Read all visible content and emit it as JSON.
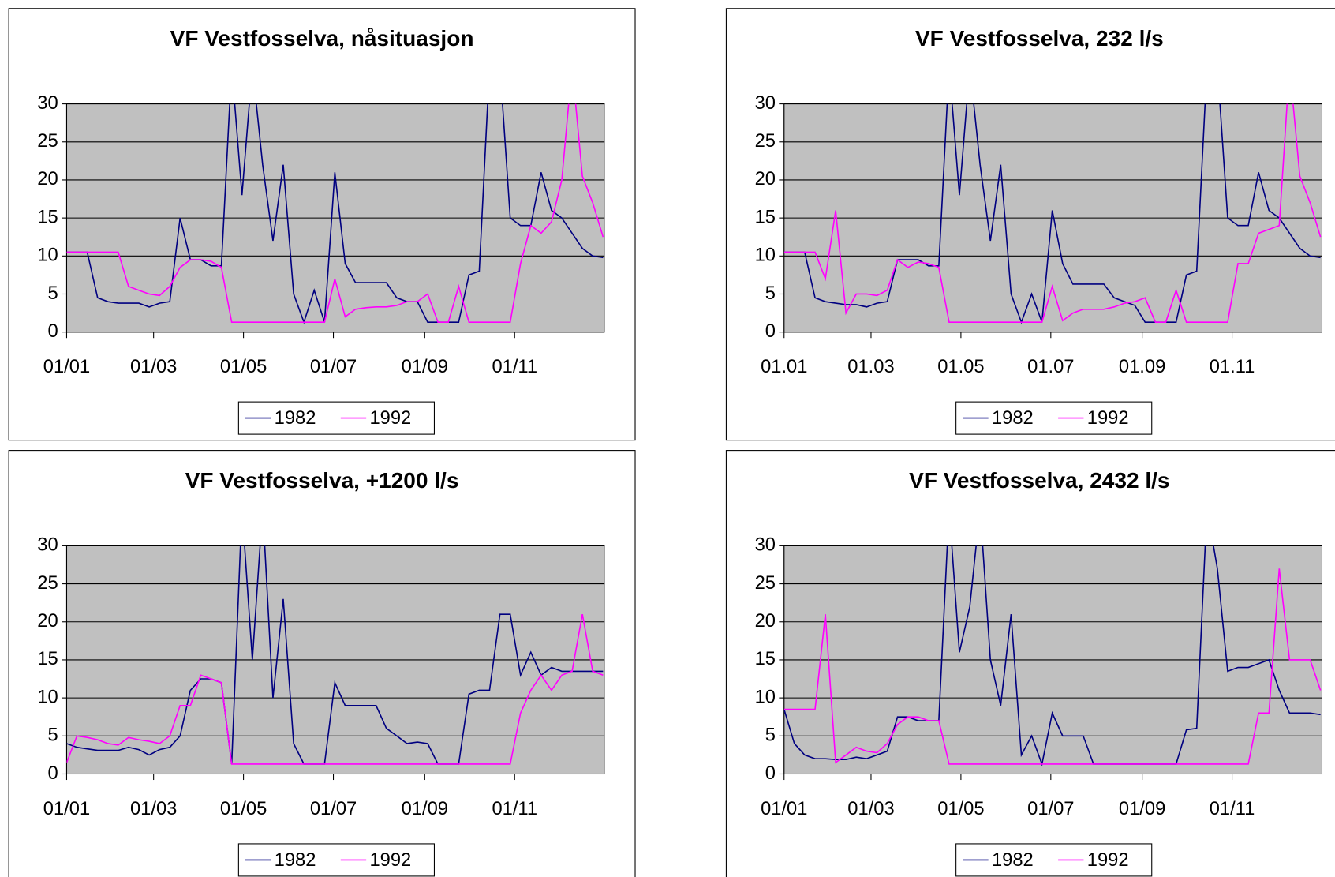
{
  "chart_data": [
    {
      "type": "line",
      "title": "VF Vestfosselva, nåsituasjon",
      "x": [
        1,
        8,
        15,
        22,
        29,
        36,
        43,
        50,
        57,
        64,
        71,
        78,
        85,
        92,
        99,
        106,
        113,
        120,
        127,
        134,
        141,
        148,
        155,
        162,
        169,
        176,
        183,
        190,
        197,
        204,
        211,
        218,
        225,
        232,
        239,
        246,
        253,
        260,
        267,
        274,
        281,
        288,
        295,
        302,
        309,
        316,
        323,
        330,
        337,
        344,
        351,
        358,
        365
      ],
      "xlim": [
        1,
        366
      ],
      "xticks": [
        {
          "value": 1,
          "label": "01/01"
        },
        {
          "value": 60,
          "label": "01/03"
        },
        {
          "value": 121,
          "label": "01/05"
        },
        {
          "value": 182,
          "label": "01/07"
        },
        {
          "value": 244,
          "label": "01/09"
        },
        {
          "value": 305,
          "label": "01/11"
        }
      ],
      "ylim": [
        0,
        30
      ],
      "yticks": [
        0,
        5,
        10,
        15,
        20,
        25,
        30
      ],
      "grid": true,
      "series": [
        {
          "name": "1982",
          "color": "#000080",
          "values": [
            10.5,
            10.5,
            10.5,
            4.5,
            4,
            3.8,
            3.8,
            3.8,
            3.3,
            3.8,
            4,
            15,
            9.5,
            9.5,
            8.7,
            8.7,
            35,
            18,
            35,
            22,
            12,
            22,
            5,
            1.3,
            5.5,
            1.3,
            21,
            9,
            6.5,
            6.5,
            6.5,
            6.5,
            4.5,
            4,
            4,
            1.3,
            1.3,
            1.3,
            1.3,
            7.5,
            8,
            35,
            35,
            15,
            14,
            14,
            21,
            16,
            15,
            13,
            11,
            10,
            9.8
          ]
        },
        {
          "name": "1992",
          "color": "#ff00ff",
          "values": [
            10.5,
            10.5,
            10.5,
            10.5,
            10.5,
            10.5,
            6,
            5.5,
            5,
            4.8,
            6,
            8.5,
            9.5,
            9.5,
            9.3,
            8.5,
            1.3,
            1.3,
            1.3,
            1.3,
            1.3,
            1.3,
            1.3,
            1.3,
            1.3,
            1.3,
            7,
            2,
            3,
            3.2,
            3.3,
            3.3,
            3.5,
            4,
            4,
            5,
            1.3,
            1.3,
            6,
            1.3,
            1.3,
            1.3,
            1.3,
            1.3,
            9,
            14,
            13,
            14.5,
            20,
            35,
            20.5,
            17,
            12.5
          ]
        }
      ]
    },
    {
      "type": "line",
      "title": "VF Vestfosselva, 232 l/s",
      "x": [
        1,
        8,
        15,
        22,
        29,
        36,
        43,
        50,
        57,
        64,
        71,
        78,
        85,
        92,
        99,
        106,
        113,
        120,
        127,
        134,
        141,
        148,
        155,
        162,
        169,
        176,
        183,
        190,
        197,
        204,
        211,
        218,
        225,
        232,
        239,
        246,
        253,
        260,
        267,
        274,
        281,
        288,
        295,
        302,
        309,
        316,
        323,
        330,
        337,
        344,
        351,
        358,
        365
      ],
      "xlim": [
        1,
        366
      ],
      "xticks": [
        {
          "value": 1,
          "label": "01.01"
        },
        {
          "value": 60,
          "label": "01.03"
        },
        {
          "value": 121,
          "label": "01.05"
        },
        {
          "value": 182,
          "label": "01.07"
        },
        {
          "value": 244,
          "label": "01.09"
        },
        {
          "value": 305,
          "label": "01.11"
        }
      ],
      "ylim": [
        0,
        30
      ],
      "yticks": [
        0,
        5,
        10,
        15,
        20,
        25,
        30
      ],
      "grid": true,
      "series": [
        {
          "name": "1982",
          "color": "#000080",
          "values": [
            10.5,
            10.5,
            10.5,
            4.5,
            4,
            3.8,
            3.6,
            3.6,
            3.3,
            3.8,
            4,
            9.5,
            9.5,
            9.5,
            8.7,
            8.7,
            35,
            18,
            35,
            22,
            12,
            22,
            5,
            1.3,
            5,
            1.3,
            16,
            9,
            6.3,
            6.3,
            6.3,
            6.3,
            4.5,
            4,
            3.5,
            1.3,
            1.3,
            1.3,
            1.3,
            7.5,
            8,
            35,
            35,
            15,
            14,
            14,
            21,
            16,
            15,
            13,
            11,
            10,
            9.8
          ]
        },
        {
          "name": "1992",
          "color": "#ff00ff",
          "values": [
            10.5,
            10.5,
            10.5,
            10.5,
            7,
            16,
            2.5,
            5,
            5,
            4.8,
            5.5,
            9.5,
            8.5,
            9.2,
            9,
            8.5,
            1.3,
            1.3,
            1.3,
            1.3,
            1.3,
            1.3,
            1.3,
            1.3,
            1.3,
            1.3,
            6,
            1.5,
            2.5,
            3,
            3,
            3,
            3.3,
            3.8,
            4,
            4.5,
            1.3,
            1.3,
            5.5,
            1.3,
            1.3,
            1.3,
            1.3,
            1.3,
            9,
            9,
            13,
            13.5,
            14,
            35,
            20.5,
            17,
            12.5
          ]
        }
      ]
    },
    {
      "type": "line",
      "title": "VF Vestfosselva, +1200 l/s",
      "x": [
        1,
        8,
        15,
        22,
        29,
        36,
        43,
        50,
        57,
        64,
        71,
        78,
        85,
        92,
        99,
        106,
        113,
        120,
        127,
        134,
        141,
        148,
        155,
        162,
        169,
        176,
        183,
        190,
        197,
        204,
        211,
        218,
        225,
        232,
        239,
        246,
        253,
        260,
        267,
        274,
        281,
        288,
        295,
        302,
        309,
        316,
        323,
        330,
        337,
        344,
        351,
        358,
        365
      ],
      "xlim": [
        1,
        366
      ],
      "xticks": [
        {
          "value": 1,
          "label": "01/01"
        },
        {
          "value": 60,
          "label": "01/03"
        },
        {
          "value": 121,
          "label": "01/05"
        },
        {
          "value": 182,
          "label": "01/07"
        },
        {
          "value": 244,
          "label": "01/09"
        },
        {
          "value": 305,
          "label": "01/11"
        }
      ],
      "ylim": [
        0,
        30
      ],
      "yticks": [
        0,
        5,
        10,
        15,
        20,
        25,
        30
      ],
      "grid": true,
      "series": [
        {
          "name": "1982",
          "color": "#000080",
          "values": [
            4,
            3.5,
            3.3,
            3.1,
            3.1,
            3.1,
            3.5,
            3.2,
            2.5,
            3.2,
            3.5,
            5,
            11,
            12.5,
            12.5,
            12,
            1.3,
            35,
            15,
            35,
            10,
            23,
            4,
            1.3,
            1.3,
            1.3,
            12,
            9,
            9,
            9,
            9,
            6,
            5,
            4,
            4.2,
            4,
            1.3,
            1.3,
            1.3,
            10.5,
            11,
            11,
            21,
            21,
            13,
            16,
            13,
            14,
            13.5,
            13.5,
            13.5,
            13.5,
            13.5
          ]
        },
        {
          "name": "1992",
          "color": "#ff00ff",
          "values": [
            1.5,
            5,
            4.8,
            4.5,
            4,
            3.8,
            4.8,
            4.5,
            4.3,
            4,
            5,
            9,
            9,
            13,
            12.5,
            12,
            1.3,
            1.3,
            1.3,
            1.3,
            1.3,
            1.3,
            1.3,
            1.3,
            1.3,
            1.3,
            1.3,
            1.3,
            1.3,
            1.3,
            1.3,
            1.3,
            1.3,
            1.3,
            1.3,
            1.3,
            1.3,
            1.3,
            1.3,
            1.3,
            1.3,
            1.3,
            1.3,
            1.3,
            8,
            11,
            13,
            11,
            13,
            13.5,
            21,
            13.5,
            13
          ]
        }
      ]
    },
    {
      "type": "line",
      "title": "VF Vestfosselva, 2432 l/s",
      "x": [
        1,
        8,
        15,
        22,
        29,
        36,
        43,
        50,
        57,
        64,
        71,
        78,
        85,
        92,
        99,
        106,
        113,
        120,
        127,
        134,
        141,
        148,
        155,
        162,
        169,
        176,
        183,
        190,
        197,
        204,
        211,
        218,
        225,
        232,
        239,
        246,
        253,
        260,
        267,
        274,
        281,
        288,
        295,
        302,
        309,
        316,
        323,
        330,
        337,
        344,
        351,
        358,
        365
      ],
      "xlim": [
        1,
        366
      ],
      "xticks": [
        {
          "value": 1,
          "label": "01/01"
        },
        {
          "value": 60,
          "label": "01/03"
        },
        {
          "value": 121,
          "label": "01/05"
        },
        {
          "value": 182,
          "label": "01/07"
        },
        {
          "value": 244,
          "label": "01/09"
        },
        {
          "value": 305,
          "label": "01/11"
        }
      ],
      "ylim": [
        0,
        30
      ],
      "yticks": [
        0,
        5,
        10,
        15,
        20,
        25,
        30
      ],
      "grid": true,
      "series": [
        {
          "name": "1982",
          "color": "#000080",
          "values": [
            8.5,
            4,
            2.5,
            2,
            2,
            1.9,
            1.9,
            2.2,
            2,
            2.5,
            3,
            7.5,
            7.5,
            7,
            7,
            7,
            35,
            16,
            22,
            35,
            15,
            9,
            21,
            2.5,
            5,
            1.3,
            8,
            5,
            5,
            5,
            1.3,
            1.3,
            1.3,
            1.3,
            1.3,
            1.3,
            1.3,
            1.3,
            1.3,
            5.8,
            6,
            35,
            27,
            13.5,
            14,
            14,
            14.5,
            15,
            11,
            8,
            8,
            8,
            7.8
          ]
        },
        {
          "name": "1992",
          "color": "#ff00ff",
          "values": [
            8.5,
            8.5,
            8.5,
            8.5,
            21,
            1.5,
            2.5,
            3.5,
            3,
            2.8,
            4,
            6.5,
            7.5,
            7.5,
            7,
            7,
            1.3,
            1.3,
            1.3,
            1.3,
            1.3,
            1.3,
            1.3,
            1.3,
            1.3,
            1.3,
            1.3,
            1.3,
            1.3,
            1.3,
            1.3,
            1.3,
            1.3,
            1.3,
            1.3,
            1.3,
            1.3,
            1.3,
            1.3,
            1.3,
            1.3,
            1.3,
            1.3,
            1.3,
            1.3,
            1.3,
            8,
            8,
            27,
            15,
            15,
            15,
            11
          ]
        }
      ]
    }
  ]
}
